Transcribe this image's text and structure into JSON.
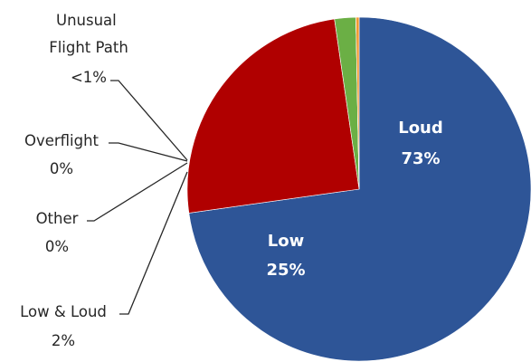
{
  "chart_data": {
    "type": "pie",
    "title": "",
    "slices": [
      {
        "label": "Loud",
        "value": 73,
        "value_label": "73%",
        "color": "#2E5597",
        "label_position": "inside"
      },
      {
        "label": "Low",
        "value": 25,
        "value_label": "25%",
        "color": "#B00000",
        "label_position": "inside"
      },
      {
        "label": "Low & Loud",
        "value": 2,
        "value_label": "2%",
        "color": "#6BAF45",
        "label_position": "outside"
      },
      {
        "label": "Other",
        "value": 0,
        "value_label": "0%",
        "color": "#7D3FA2",
        "label_position": "outside"
      },
      {
        "label": "Overflight",
        "value": 0,
        "value_label": "0%",
        "color": "#3FA7C2",
        "label_position": "outside"
      },
      {
        "label": "Unusual Flight Path",
        "value": 0.3,
        "value_label": "<1%",
        "color": "#F39A32",
        "label_position": "outside"
      }
    ],
    "start_angle_deg": 0,
    "direction": "clockwise",
    "legend": "none"
  }
}
